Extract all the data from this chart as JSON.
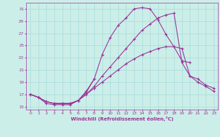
{
  "xlabel": "Windchill (Refroidissement éolien,°C)",
  "bg_color": "#cceee8",
  "grid_color": "#aadddd",
  "line_color": "#993399",
  "xlim": [
    -0.5,
    23.5
  ],
  "ylim": [
    14.5,
    32
  ],
  "yticks": [
    15,
    17,
    19,
    21,
    23,
    25,
    27,
    29,
    31
  ],
  "xticks": [
    0,
    1,
    2,
    3,
    4,
    5,
    6,
    7,
    8,
    9,
    10,
    11,
    12,
    13,
    14,
    15,
    16,
    17,
    18,
    19,
    20,
    21,
    22,
    23
  ],
  "series1_x": [
    0,
    1,
    2,
    3,
    4,
    5,
    6,
    7,
    8
  ],
  "series1_y": [
    17.0,
    16.5,
    15.5,
    15.3,
    15.3,
    15.3,
    16.0,
    17.3,
    19.5
  ],
  "series2_x": [
    0,
    1,
    2,
    3,
    4,
    5,
    6,
    7,
    8,
    9,
    10,
    11,
    12,
    13,
    14,
    15,
    16,
    17,
    18,
    19,
    20,
    21,
    22,
    23
  ],
  "series2_y": [
    17.0,
    16.5,
    15.8,
    15.5,
    15.5,
    15.5,
    16.0,
    17.0,
    18.0,
    19.0,
    20.0,
    21.0,
    22.0,
    22.8,
    23.5,
    24.0,
    24.5,
    24.8,
    24.8,
    24.5,
    20.0,
    19.5,
    18.5,
    18.0
  ],
  "series3_x": [
    0,
    1,
    2,
    3,
    4,
    5,
    6,
    7,
    8,
    9,
    10,
    11,
    12,
    13,
    14,
    15,
    16,
    17,
    18,
    19,
    20,
    21,
    22,
    23
  ],
  "series3_y": [
    17.0,
    16.5,
    15.8,
    15.5,
    15.5,
    15.5,
    16.0,
    17.0,
    18.3,
    20.0,
    21.5,
    23.0,
    24.5,
    26.0,
    27.5,
    28.5,
    29.5,
    30.0,
    30.3,
    22.2,
    20.0,
    19.0,
    18.3,
    17.5
  ],
  "series4_x": [
    0,
    1,
    2,
    3,
    4,
    5,
    6,
    7,
    8,
    9,
    10,
    11,
    12,
    13,
    14,
    15,
    16,
    17,
    18,
    19,
    20
  ],
  "series4_y": [
    17.0,
    16.5,
    15.8,
    15.5,
    15.5,
    15.5,
    16.0,
    17.5,
    19.5,
    23.5,
    26.3,
    28.3,
    29.5,
    31.0,
    31.2,
    31.0,
    29.2,
    26.8,
    24.8,
    22.5,
    22.2
  ]
}
